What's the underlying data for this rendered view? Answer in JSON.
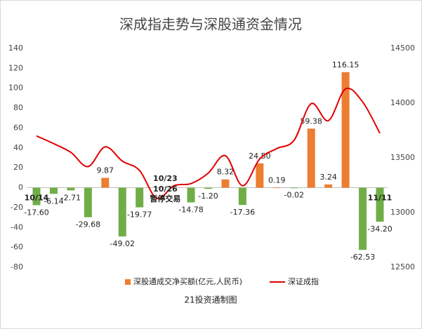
{
  "chart_data": {
    "type": "bar-line",
    "title": "深成指走势与深股通资金情况",
    "source": "21投资通制图",
    "categories": [
      "10/14",
      null,
      null,
      null,
      null,
      null,
      null,
      null,
      null,
      null,
      null,
      null,
      null,
      null,
      null,
      null,
      null,
      null,
      null,
      null,
      "11/11"
    ],
    "annotations": [
      "10/23",
      "10/26",
      "暂停交易"
    ],
    "series": [
      {
        "name": "深股通成交净买额(亿元,人民币)",
        "type": "bar",
        "color": "#ed7d31",
        "negative_color": "#70ad47",
        "values": [
          -17.6,
          -6.14,
          -2.71,
          -29.68,
          9.87,
          -49.02,
          -19.77,
          null,
          null,
          -14.78,
          -1.2,
          8.32,
          -17.36,
          24.5,
          0.19,
          -0.02,
          59.38,
          3.24,
          116.15,
          -62.53,
          -34.2
        ],
        "value_labels": [
          "-17.60",
          "-6.14",
          "-2.71",
          "-29.68",
          "9.87",
          "-49.02",
          "-19.77",
          null,
          null,
          "-14.78",
          "-1.20",
          "8.32",
          "-17.36",
          "24.50",
          "0.19",
          "-0.02",
          "59.38",
          "3.24",
          "116.15",
          "-62.53",
          "-34.20"
        ]
      },
      {
        "name": "深证成指",
        "type": "line",
        "axis": "y2",
        "color": "#e00000",
        "values": [
          13700,
          13630,
          13550,
          13420,
          13600,
          13470,
          13385,
          13130,
          13245,
          13265,
          13360,
          13520,
          13245,
          13490,
          13585,
          13660,
          13995,
          13840,
          14130,
          14010,
          13725
        ]
      }
    ],
    "ylim": [
      -80,
      140
    ],
    "yticks": [
      -80,
      -60,
      -40,
      -20,
      0,
      20,
      40,
      60,
      80,
      100,
      120,
      140
    ],
    "y2lim": [
      12500,
      14500
    ],
    "y2ticks": [
      12500,
      13000,
      13500,
      14000,
      14500
    ],
    "legend": "bottom"
  }
}
